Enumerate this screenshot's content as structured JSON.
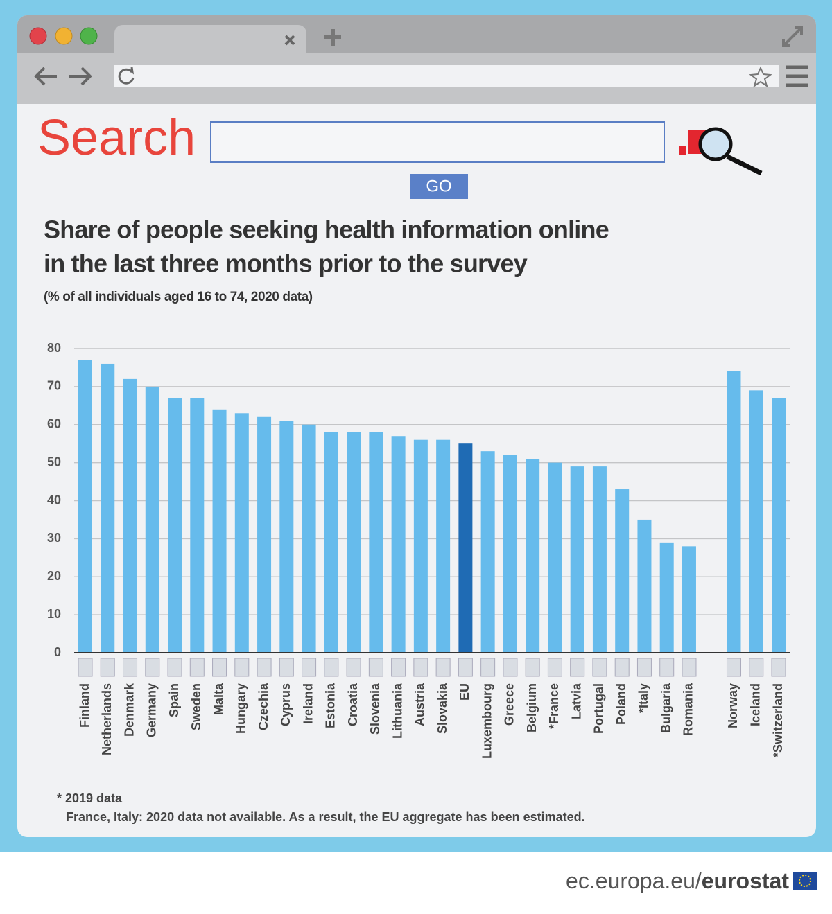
{
  "search_label": "Search",
  "go_button": "GO",
  "footnotes": [
    "* 2019 data",
    "France, Italy: 2020 data not available. As a result, the EU aggregate has been estimated."
  ],
  "footer": {
    "domain": "ec.europa.eu/",
    "brand": "eurostat"
  },
  "chart_data": {
    "type": "bar",
    "title": [
      "Share of people seeking health information online",
      "in the last three months prior to the survey"
    ],
    "subtitle": "(% of all individuals aged 16 to 74, 2020 data)",
    "categories": [
      "Finland",
      "Netherlands",
      "Denmark",
      "Germany",
      "Spain",
      "Sweden",
      "Malta",
      "Hungary",
      "Czechia",
      "Cyprus",
      "Ireland",
      "Estonia",
      "Croatia",
      "Slovenia",
      "Lithuania",
      "Austria",
      "Slovakia",
      "EU",
      "Luxembourg",
      "Greece",
      "Belgium",
      "*France",
      "Latvia",
      "Portugal",
      "Poland",
      "*Italy",
      "Bulgaria",
      "Romania",
      null,
      "Norway",
      "Iceland",
      "*Switzerland"
    ],
    "values": [
      77,
      76,
      72,
      70,
      67,
      67,
      64,
      63,
      62,
      61,
      60,
      58,
      58,
      58,
      57,
      56,
      56,
      55,
      53,
      52,
      51,
      50,
      49,
      49,
      43,
      35,
      29,
      28,
      null,
      74,
      69,
      67
    ],
    "colors": [
      "#66bbec",
      "#66bbec",
      "#66bbec",
      "#66bbec",
      "#66bbec",
      "#66bbec",
      "#66bbec",
      "#66bbec",
      "#66bbec",
      "#66bbec",
      "#66bbec",
      "#66bbec",
      "#66bbec",
      "#66bbec",
      "#66bbec",
      "#66bbec",
      "#66bbec",
      "#1f6bb4",
      "#66bbec",
      "#66bbec",
      "#66bbec",
      "#66bbec",
      "#66bbec",
      "#66bbec",
      "#66bbec",
      "#66bbec",
      "#66bbec",
      "#66bbec",
      null,
      "#66bbec",
      "#66bbec",
      "#66bbec"
    ],
    "ylim": [
      0,
      80
    ],
    "yticks": [
      0,
      10,
      20,
      30,
      40,
      50,
      60,
      70,
      80
    ],
    "grid": true
  }
}
